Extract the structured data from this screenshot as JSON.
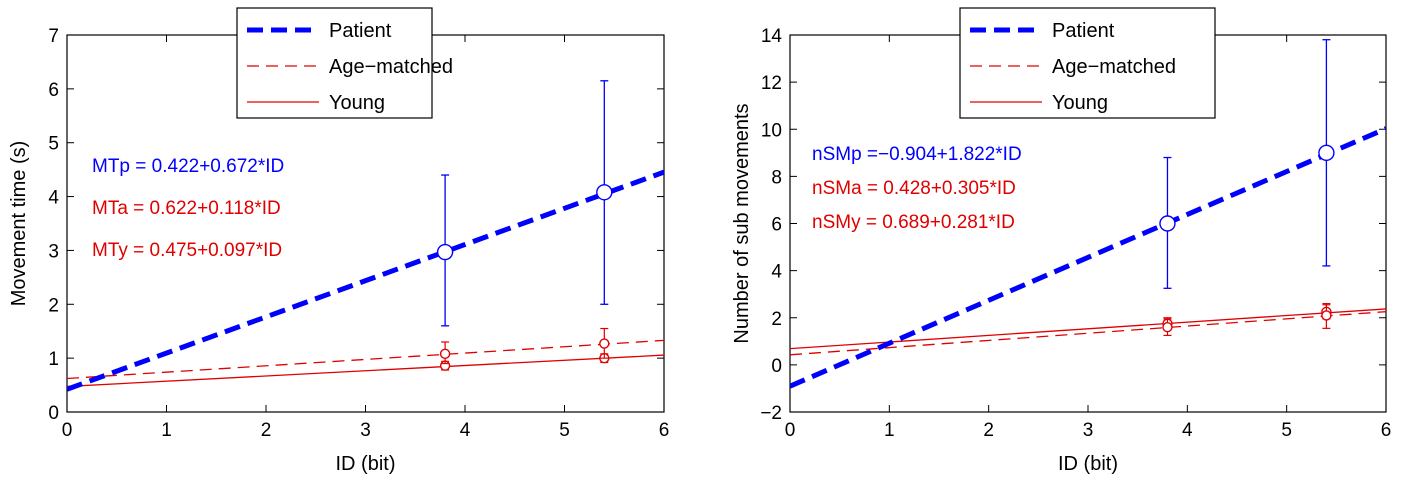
{
  "chart_data": [
    {
      "type": "line",
      "xlabel": "ID (bit)",
      "ylabel": "Movement time (s)",
      "xlim": [
        0,
        6
      ],
      "ylim": [
        0,
        7
      ],
      "xticks": [
        "0",
        "1",
        "2",
        "3",
        "4",
        "5",
        "6"
      ],
      "yticks": [
        "0",
        "1",
        "2",
        "3",
        "4",
        "5",
        "6",
        "7"
      ],
      "grid": false,
      "legend_position": "top-center",
      "legend": [
        "Patient",
        "Age−matched",
        "Young"
      ],
      "equations": [
        {
          "text": "MTp = 0.422+0.672*ID",
          "color": "#0000ff"
        },
        {
          "text": "MTa = 0.622+0.118*ID",
          "color": "#e00000"
        },
        {
          "text": "MTy = 0.475+0.097*ID",
          "color": "#e00000"
        }
      ],
      "series": [
        {
          "name": "Patient",
          "color": "#0000ff",
          "style": "dashed-thick",
          "line": {
            "intercept": 0.422,
            "slope": 0.672
          },
          "points": [
            {
              "x": 3.8,
              "y": 2.97,
              "err_low": 1.6,
              "err_high": 4.4
            },
            {
              "x": 5.4,
              "y": 4.08,
              "err_low": 2.0,
              "err_high": 6.15
            }
          ]
        },
        {
          "name": "Age−matched",
          "color": "#e00000",
          "style": "dashed-thin",
          "line": {
            "intercept": 0.622,
            "slope": 0.118
          },
          "points": [
            {
              "x": 3.8,
              "y": 1.08,
              "err_low": 0.9,
              "err_high": 1.3
            },
            {
              "x": 5.4,
              "y": 1.27,
              "err_low": 1.0,
              "err_high": 1.55
            }
          ]
        },
        {
          "name": "Young",
          "color": "#e00000",
          "style": "solid",
          "line": {
            "intercept": 0.475,
            "slope": 0.097
          },
          "points": [
            {
              "x": 3.8,
              "y": 0.86,
              "err_low": 0.78,
              "err_high": 0.94
            },
            {
              "x": 5.4,
              "y": 1.0,
              "err_low": 0.92,
              "err_high": 1.08
            }
          ]
        }
      ]
    },
    {
      "type": "line",
      "xlabel": "ID (bit)",
      "ylabel": "Number of sub movements",
      "xlim": [
        0,
        6
      ],
      "ylim": [
        -2,
        14
      ],
      "xticks": [
        "0",
        "1",
        "2",
        "3",
        "4",
        "5",
        "6"
      ],
      "yticks": [
        "−2",
        "0",
        "2",
        "4",
        "6",
        "8",
        "10",
        "12",
        "14"
      ],
      "grid": false,
      "legend_position": "top-center",
      "legend": [
        "Patient",
        "Age−matched",
        "Young"
      ],
      "equations": [
        {
          "text": "nSMp =−0.904+1.822*ID",
          "color": "#0000ff"
        },
        {
          "text": "nSMa = 0.428+0.305*ID",
          "color": "#e00000"
        },
        {
          "text": "nSMy = 0.689+0.281*ID",
          "color": "#e00000"
        }
      ],
      "series": [
        {
          "name": "Patient",
          "color": "#0000ff",
          "style": "dashed-thick",
          "line": {
            "intercept": -0.904,
            "slope": 1.822
          },
          "points": [
            {
              "x": 3.8,
              "y": 6.0,
              "err_low": 3.25,
              "err_high": 8.8
            },
            {
              "x": 5.4,
              "y": 9.0,
              "err_low": 4.2,
              "err_high": 13.8
            }
          ]
        },
        {
          "name": "Age−matched",
          "color": "#e00000",
          "style": "dashed-thin",
          "line": {
            "intercept": 0.428,
            "slope": 0.305
          },
          "points": [
            {
              "x": 3.8,
              "y": 1.6,
              "err_low": 1.25,
              "err_high": 1.95
            },
            {
              "x": 5.4,
              "y": 2.1,
              "err_low": 1.55,
              "err_high": 2.6
            }
          ]
        },
        {
          "name": "Young",
          "color": "#e00000",
          "style": "solid",
          "line": {
            "intercept": 0.689,
            "slope": 0.281
          },
          "points": [
            {
              "x": 3.8,
              "y": 1.75,
              "err_low": 1.5,
              "err_high": 2.0
            },
            {
              "x": 5.4,
              "y": 2.25,
              "err_low": 1.95,
              "err_high": 2.55
            }
          ]
        }
      ]
    }
  ]
}
